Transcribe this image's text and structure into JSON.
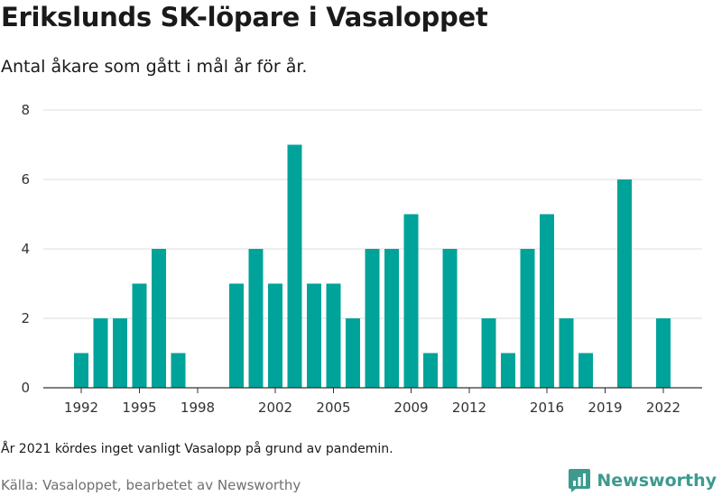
{
  "header": {
    "title": "Erikslunds SK-löpare i Vasaloppet",
    "subtitle": "Antal åkare som gått i mål år för år."
  },
  "footer": {
    "note": "År 2021 kördes inget vanligt Vasalopp på grund av pandemin.",
    "source": "Källa: Vasaloppet, bearbetet av Newsworthy",
    "brand_name": "Newsworthy",
    "brand_color": "#3d9a8e",
    "brand_icon": "bar-chart-logo-icon"
  },
  "chart_data": {
    "type": "bar",
    "x": [
      1992,
      1993,
      1994,
      1995,
      1996,
      1997,
      1998,
      1999,
      2000,
      2001,
      2002,
      2003,
      2004,
      2005,
      2006,
      2007,
      2008,
      2009,
      2010,
      2011,
      2012,
      2013,
      2014,
      2015,
      2016,
      2017,
      2018,
      2019,
      2020,
      2021,
      2022
    ],
    "values": [
      1,
      2,
      2,
      3,
      4,
      1,
      0,
      0,
      3,
      4,
      3,
      7,
      3,
      3,
      2,
      4,
      4,
      5,
      1,
      4,
      0,
      2,
      1,
      4,
      5,
      2,
      1,
      0,
      6,
      0,
      2
    ],
    "xticks": [
      1992,
      1995,
      1998,
      2002,
      2005,
      2009,
      2012,
      2016,
      2019,
      2022
    ],
    "yticks": [
      0,
      2,
      4,
      6,
      8
    ],
    "ylim": [
      0,
      8
    ],
    "xlabel": "",
    "ylabel": "",
    "bar_color": "#00a39a",
    "grid": true
  }
}
